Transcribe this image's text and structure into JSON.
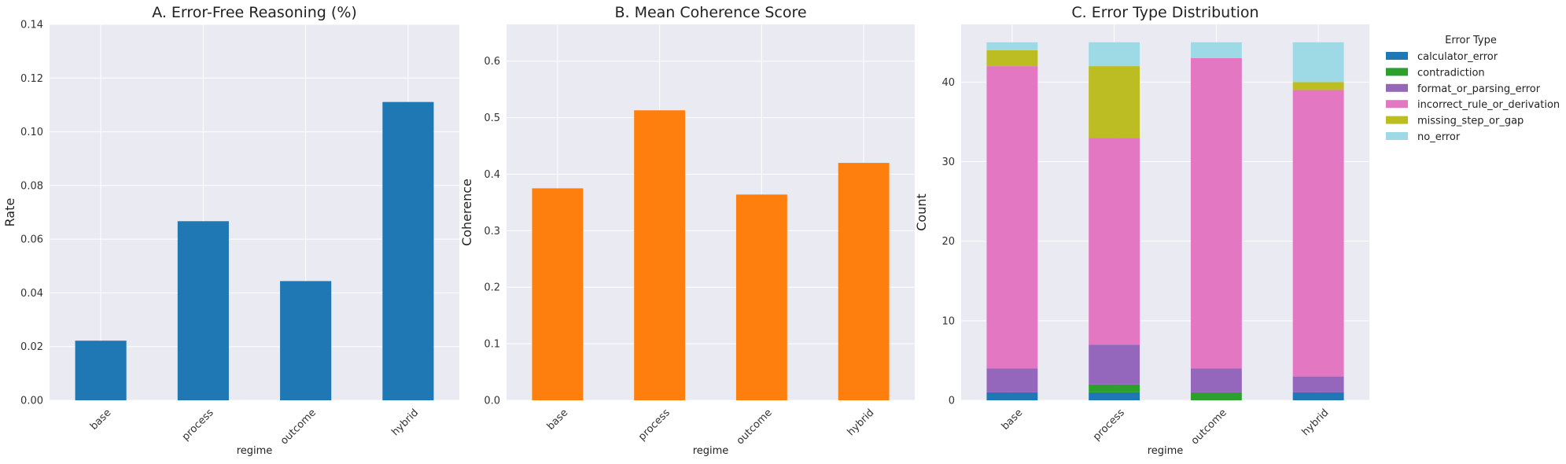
{
  "chart_data": [
    {
      "type": "bar",
      "title": "A. Error-Free Reasoning (%)",
      "xlabel": "regime",
      "ylabel": "Rate",
      "categories": [
        "base",
        "process",
        "outcome",
        "hybrid"
      ],
      "values": [
        0.0222,
        0.0667,
        0.0444,
        0.1111
      ],
      "ylim": [
        0,
        0.14
      ],
      "yticks": [
        "0.00",
        "0.02",
        "0.04",
        "0.06",
        "0.08",
        "0.10",
        "0.12",
        "0.14"
      ],
      "color": "#1f77b4",
      "grid": true
    },
    {
      "type": "bar",
      "title": "B. Mean Coherence Score",
      "xlabel": "regime",
      "ylabel": "Coherence",
      "categories": [
        "base",
        "process",
        "outcome",
        "hybrid"
      ],
      "values": [
        0.375,
        0.513,
        0.364,
        0.42
      ],
      "ylim": [
        0,
        0.665
      ],
      "yticks": [
        "0.0",
        "0.1",
        "0.2",
        "0.3",
        "0.4",
        "0.5",
        "0.6"
      ],
      "color": "#ff7f0e",
      "grid": true
    },
    {
      "type": "bar",
      "stacked": true,
      "title": "C. Error Type Distribution",
      "xlabel": "regime",
      "ylabel": "Count",
      "categories": [
        "base",
        "process",
        "outcome",
        "hybrid"
      ],
      "ylim": [
        0,
        47.25
      ],
      "yticks": [
        "0",
        "10",
        "20",
        "30",
        "40"
      ],
      "legend_title": "Error Type",
      "legend_position": "outside-right",
      "grid": true,
      "series": [
        {
          "name": "calculator_error",
          "color": "#1f77b4",
          "values": [
            1,
            1,
            0,
            1
          ]
        },
        {
          "name": "contradiction",
          "color": "#2ca02c",
          "values": [
            0,
            1,
            1,
            0
          ]
        },
        {
          "name": "format_or_parsing_error",
          "color": "#9467bd",
          "values": [
            3,
            5,
            3,
            2
          ]
        },
        {
          "name": "incorrect_rule_or_derivation",
          "color": "#e377c2",
          "values": [
            38,
            26,
            39,
            36
          ]
        },
        {
          "name": "missing_step_or_gap",
          "color": "#bcbd22",
          "values": [
            2,
            9,
            0,
            1
          ]
        },
        {
          "name": "no_error",
          "color": "#9edae5",
          "values": [
            1,
            3,
            2,
            5
          ]
        }
      ]
    }
  ]
}
